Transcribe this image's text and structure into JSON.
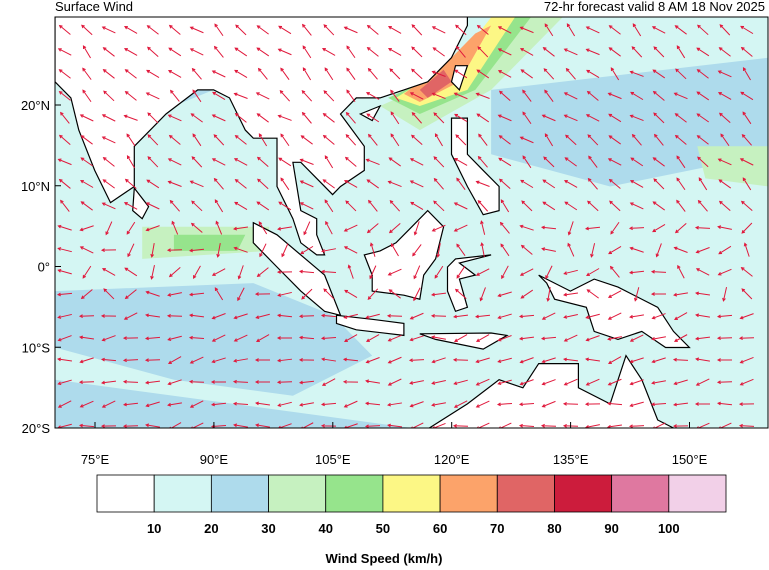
{
  "header": {
    "title": "Surface Wind",
    "subtitle": "72-hr forecast valid 8 AM 18 Nov 2025"
  },
  "map": {
    "lat_labels": [
      "20°N",
      "10°N",
      "0°",
      "10°S",
      "20°S"
    ],
    "lon_labels": [
      "75°E",
      "90°E",
      "105°E",
      "120°E",
      "135°E",
      "150°E"
    ]
  },
  "colorbar": {
    "title": "Wind Speed (km/h)",
    "colors": [
      "#ffffff",
      "#d4f6f3",
      "#aedbec",
      "#c6f1c0",
      "#96e48c",
      "#fcf785",
      "#fca36a",
      "#e06565",
      "#cc1c3c",
      "#df78a0",
      "#f2d0e8"
    ],
    "levels": [
      10,
      20,
      30,
      40,
      50,
      60,
      70,
      80,
      90,
      100
    ]
  }
}
